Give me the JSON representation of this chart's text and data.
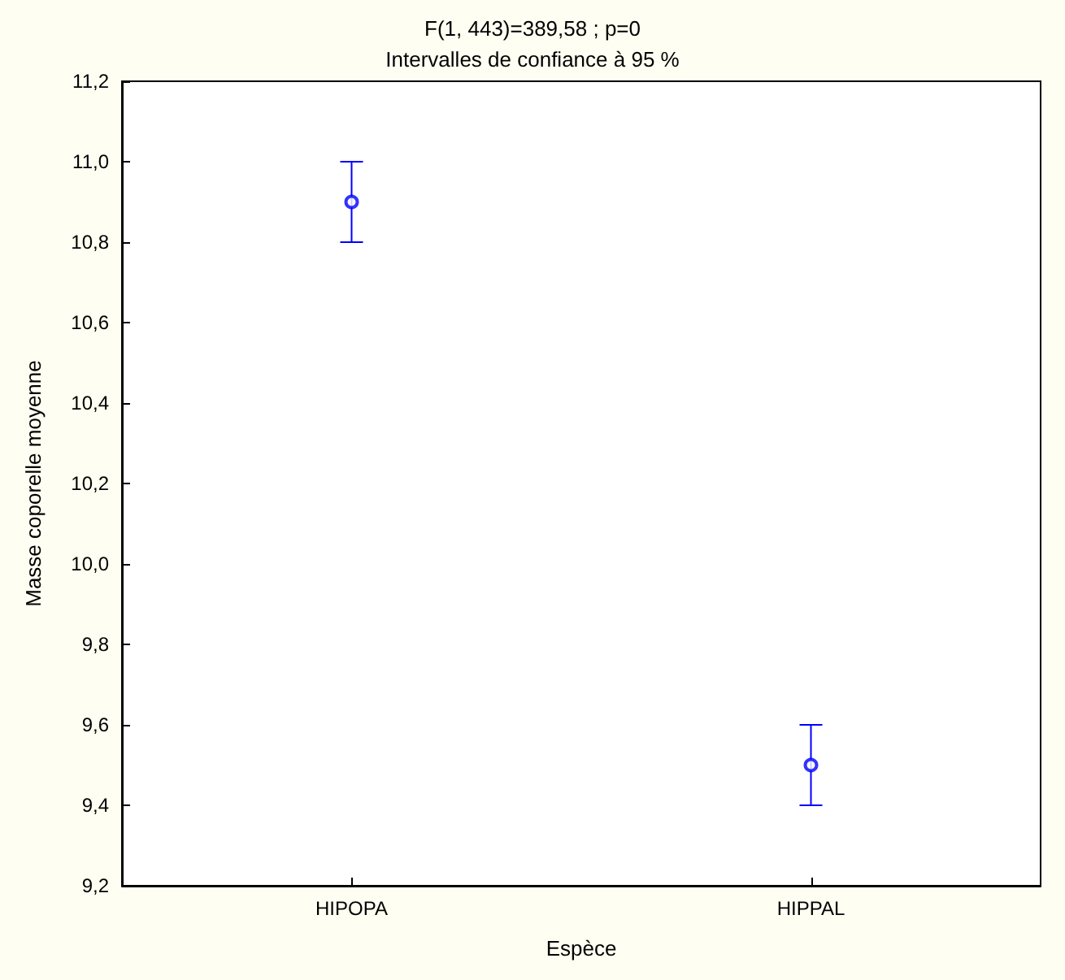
{
  "chart_data": {
    "type": "scatter",
    "title": "F(1, 443)=389,58 ; p=0",
    "subtitle": "Intervalles de confiance à 95 %",
    "xlabel": "Espèce",
    "ylabel": "Masse coporelle moyenne",
    "categories": [
      "HIPOPA",
      "HIPPAL"
    ],
    "series": [
      {
        "color": "#0000ff",
        "values": [
          10.9,
          9.5
        ],
        "errors": [
          0.1,
          0.1
        ]
      }
    ],
    "ylim": [
      9.2,
      11.2
    ],
    "yticks": [
      {
        "value": 9.2,
        "label": "9,2"
      },
      {
        "value": 9.4,
        "label": "9,4"
      },
      {
        "value": 9.6,
        "label": "9,6"
      },
      {
        "value": 9.8,
        "label": "9,8"
      },
      {
        "value": 10.0,
        "label": "10,0"
      },
      {
        "value": 10.2,
        "label": "10,2"
      },
      {
        "value": 10.4,
        "label": "10,4"
      },
      {
        "value": 10.6,
        "label": "10,6"
      },
      {
        "value": 10.8,
        "label": "10,8"
      },
      {
        "value": 11.0,
        "label": "11,0"
      },
      {
        "value": 11.2,
        "label": "11,2"
      }
    ],
    "marker": "circle",
    "grid": false
  }
}
